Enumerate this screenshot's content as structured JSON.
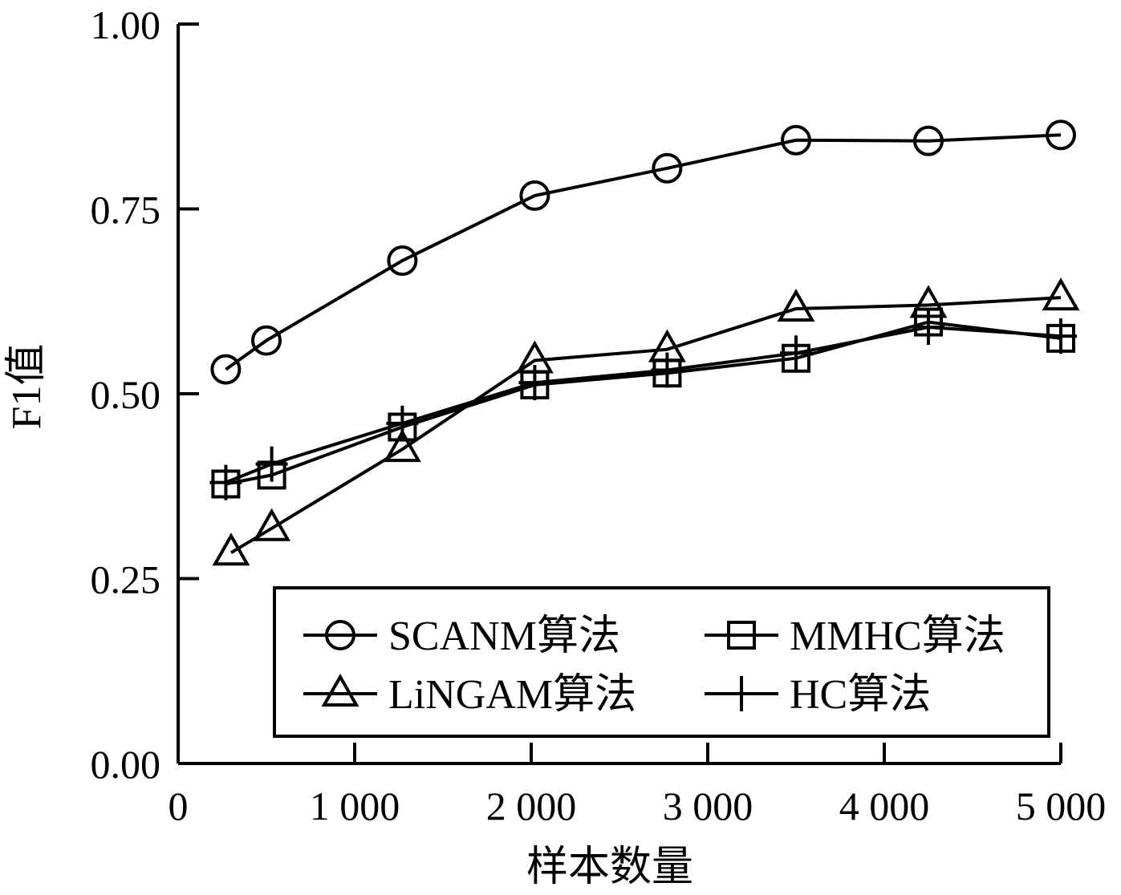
{
  "chart_data": {
    "type": "line",
    "xlabel": "样本数量",
    "ylabel": "F1值",
    "xlim": [
      0,
      5000
    ],
    "ylim": [
      0,
      1.0
    ],
    "x_ticks": [
      0,
      1000,
      2000,
      3000,
      4000,
      5000
    ],
    "x_tick_labels": [
      "0",
      "1 000",
      "2 000",
      "3 000",
      "4 000",
      "5 000"
    ],
    "y_ticks": [
      0,
      0.25,
      0.5,
      0.75,
      1.0
    ],
    "y_tick_labels": [
      "0.00",
      "0.25",
      "0.50",
      "0.75",
      "1.00"
    ],
    "grid": false,
    "legend_position": "bottom-right",
    "legend_columns": 2,
    "series": [
      {
        "name": "SCANM算法",
        "marker": "circle",
        "x": [
          270,
          500,
          1270,
          2020,
          2770,
          3500,
          4250,
          5000
        ],
        "y": [
          0.533,
          0.572,
          0.68,
          0.768,
          0.805,
          0.843,
          0.842,
          0.85
        ]
      },
      {
        "name": "MMHC算法",
        "marker": "square",
        "x": [
          270,
          530,
          1270,
          2020,
          2770,
          3500,
          4250,
          5000
        ],
        "y": [
          0.378,
          0.39,
          0.455,
          0.512,
          0.528,
          0.548,
          0.597,
          0.575
        ]
      },
      {
        "name": "LiNGAM算法",
        "marker": "triangle",
        "x": [
          300,
          530,
          1270,
          2020,
          2770,
          3500,
          4250,
          5000
        ],
        "y": [
          0.285,
          0.318,
          0.425,
          0.545,
          0.56,
          0.615,
          0.62,
          0.63
        ]
      },
      {
        "name": "HC算法",
        "marker": "plus",
        "x": [
          270,
          530,
          1270,
          2020,
          2770,
          3500,
          4250,
          5000
        ],
        "y": [
          0.38,
          0.405,
          0.46,
          0.515,
          0.532,
          0.555,
          0.59,
          0.578
        ]
      }
    ]
  }
}
